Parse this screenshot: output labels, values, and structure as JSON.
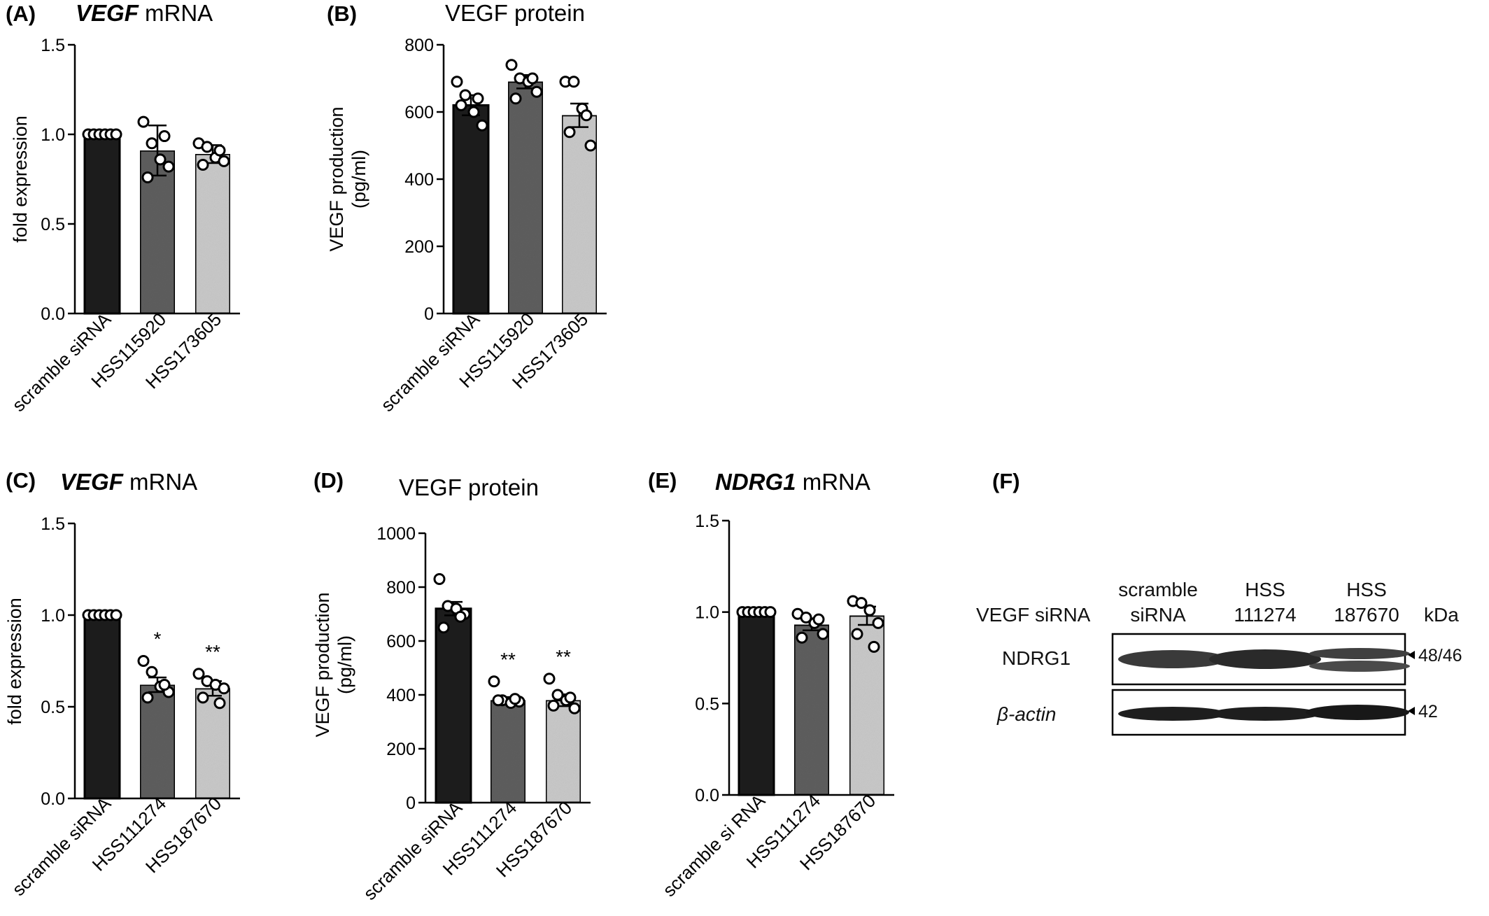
{
  "colors": {
    "bar_dark": "#1c1c1c",
    "bar_mid": "#5e5e5e",
    "bar_light": "#c9c9c9",
    "axis": "#000000"
  },
  "chart_data": [
    {
      "panel": "(A)",
      "type": "bar",
      "title_italic": "VEGF",
      "title_rest": " mRNA",
      "ylabel": "fold expression",
      "ylabel2": "",
      "ylim": [
        0,
        1.5
      ],
      "yticks": [
        "0.0",
        "0.5",
        "1.0",
        "1.5"
      ],
      "categories": [
        "scramble siRNA",
        "HSS115920",
        "HSS173605"
      ],
      "values": [
        1.0,
        0.91,
        0.89
      ],
      "errors": [
        0.0,
        0.14,
        0.05
      ],
      "points": [
        [
          1,
          1,
          1,
          1,
          1,
          1
        ],
        [
          1.07,
          0.95,
          0.86,
          0.82,
          0.76,
          0.99
        ],
        [
          0.95,
          0.93,
          0.87,
          0.85,
          0.83,
          0.91
        ]
      ],
      "stars": [
        "",
        "",
        ""
      ],
      "legend": "none",
      "grid": false
    },
    {
      "panel": "(B)",
      "type": "bar",
      "title_italic": "",
      "title_rest": "VEGF protein",
      "ylabel": "VEGF production",
      "ylabel2": "(pg/ml)",
      "ylim": [
        0,
        800
      ],
      "yticks": [
        "0",
        "200",
        "400",
        "600",
        "800"
      ],
      "categories": [
        "scramble siRNA",
        "HSS115920",
        "HSS173605"
      ],
      "values": [
        620,
        690,
        590
      ],
      "errors": [
        30,
        20,
        35
      ],
      "points": [
        [
          690,
          650,
          600,
          560,
          620,
          640
        ],
        [
          740,
          700,
          690,
          660,
          640,
          700
        ],
        [
          690,
          690,
          610,
          500,
          540,
          590
        ]
      ],
      "stars": [
        "",
        "",
        ""
      ],
      "legend": "none",
      "grid": false
    },
    {
      "panel": "(C)",
      "type": "bar",
      "title_italic": "VEGF",
      "title_rest": " mRNA",
      "ylabel": "fold expression",
      "ylabel2": "",
      "ylim": [
        0,
        1.5
      ],
      "yticks": [
        "0.0",
        "0.5",
        "1.0",
        "1.5"
      ],
      "categories": [
        "scramble siRNA",
        "HSS111274",
        "HSS187670"
      ],
      "values": [
        1.0,
        0.62,
        0.6
      ],
      "errors": [
        0.0,
        0.04,
        0.04
      ],
      "points": [
        [
          1,
          1,
          1,
          1,
          1,
          1
        ],
        [
          0.75,
          0.69,
          0.61,
          0.58,
          0.55,
          0.62
        ],
        [
          0.68,
          0.64,
          0.62,
          0.6,
          0.55,
          0.52
        ]
      ],
      "stars": [
        "",
        "*",
        "**"
      ],
      "legend": "none",
      "grid": false
    },
    {
      "panel": "(D)",
      "type": "bar",
      "title_italic": "",
      "title_rest": "VEGF protein",
      "ylabel": "VEGF production",
      "ylabel2": "(pg/ml)",
      "ylim": [
        0,
        1000
      ],
      "yticks": [
        "0",
        "200",
        "400",
        "600",
        "800",
        "1000"
      ],
      "categories": [
        "scramble siRNA",
        "HSS111274",
        "HSS187670"
      ],
      "values": [
        720,
        380,
        380
      ],
      "errors": [
        25,
        12,
        22
      ],
      "points": [
        [
          830,
          730,
          720,
          700,
          650,
          690
        ],
        [
          450,
          380,
          370,
          375,
          380,
          385
        ],
        [
          460,
          400,
          380,
          350,
          360,
          390
        ]
      ],
      "stars": [
        "",
        "**",
        "**"
      ],
      "legend": "none",
      "grid": false
    },
    {
      "panel": "(E)",
      "type": "bar",
      "title_italic": "NDRG1",
      "title_rest": " mRNA",
      "ylabel": "",
      "ylabel2": "",
      "ylim": [
        0,
        1.5
      ],
      "yticks": [
        "0.0",
        "0.5",
        "1.0",
        "1.5"
      ],
      "categories": [
        "scramble si RNA",
        "HSS111274",
        "HSS187670"
      ],
      "values": [
        1.0,
        0.93,
        0.98
      ],
      "errors": [
        0.0,
        0.03,
        0.05
      ],
      "points": [
        [
          1,
          1,
          1,
          1,
          1,
          1
        ],
        [
          0.99,
          0.97,
          0.94,
          0.88,
          0.86,
          0.96
        ],
        [
          1.06,
          1.05,
          1.01,
          0.94,
          0.88,
          0.81
        ]
      ],
      "stars": [
        "",
        "",
        ""
      ],
      "legend": "none",
      "grid": false
    }
  ],
  "blot": {
    "panel": "(F)",
    "row_label": "VEGF siRNA",
    "kda_label": "kDa",
    "lanes": [
      {
        "line1": "scramble",
        "line2": "siRNA"
      },
      {
        "line1": "HSS",
        "line2": "111274"
      },
      {
        "line1": "HSS",
        "line2": "187670"
      }
    ],
    "bands": [
      {
        "label": "NDRG1",
        "marker": "48/46"
      },
      {
        "label": "β-actin",
        "marker": "42"
      }
    ]
  }
}
